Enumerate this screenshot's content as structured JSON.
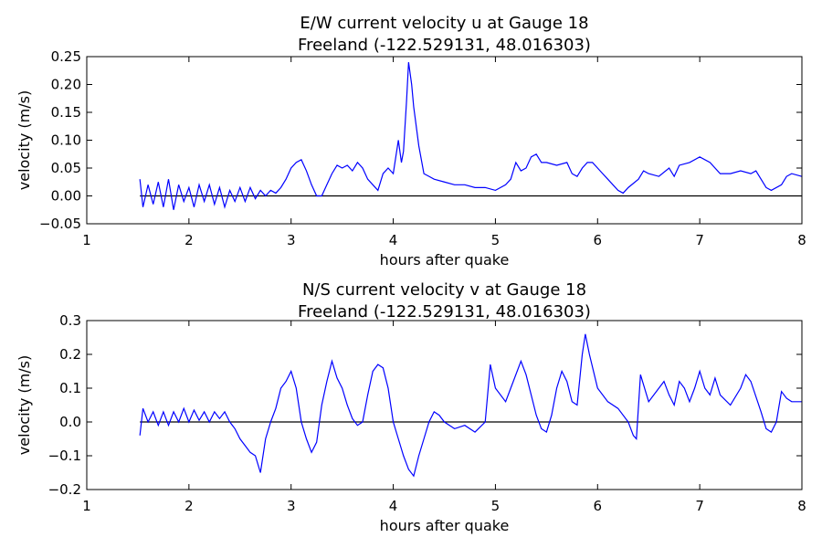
{
  "chart_data": [
    {
      "type": "line",
      "title": "E/W current velocity u at Gauge 18",
      "subtitle": "Freeland  (-122.529131, 48.016303)",
      "x_label": "hours after quake",
      "y_label": "velocity (m/s)",
      "xlim": [
        1,
        8
      ],
      "xticks": [
        1,
        2,
        3,
        4,
        5,
        6,
        7,
        8
      ],
      "ylim": [
        -0.05,
        0.25
      ],
      "yticks": [
        {
          "value": -0.05,
          "label": "−0.05"
        },
        {
          "value": 0,
          "label": "0.00"
        },
        {
          "value": 0.05,
          "label": "0.05"
        },
        {
          "value": 0.1,
          "label": "0.10"
        },
        {
          "value": 0.15,
          "label": "0.15"
        },
        {
          "value": 0.2,
          "label": "0.20"
        },
        {
          "value": 0.25,
          "label": "0.25"
        }
      ],
      "hline": 0,
      "x": [
        1.52,
        1.55,
        1.6,
        1.65,
        1.7,
        1.75,
        1.8,
        1.85,
        1.9,
        1.95,
        2.0,
        2.05,
        2.1,
        2.15,
        2.2,
        2.25,
        2.3,
        2.35,
        2.4,
        2.45,
        2.5,
        2.55,
        2.6,
        2.65,
        2.7,
        2.75,
        2.8,
        2.85,
        2.9,
        2.95,
        3.0,
        3.05,
        3.1,
        3.15,
        3.2,
        3.25,
        3.3,
        3.35,
        3.4,
        3.45,
        3.5,
        3.55,
        3.6,
        3.65,
        3.7,
        3.75,
        3.8,
        3.85,
        3.9,
        3.95,
        4.0,
        4.05,
        4.08,
        4.1,
        4.13,
        4.15,
        4.18,
        4.2,
        4.25,
        4.3,
        4.35,
        4.4,
        4.5,
        4.6,
        4.7,
        4.8,
        4.9,
        5.0,
        5.1,
        5.15,
        5.2,
        5.25,
        5.3,
        5.35,
        5.4,
        5.45,
        5.5,
        5.6,
        5.7,
        5.75,
        5.8,
        5.85,
        5.9,
        5.95,
        6.0,
        6.05,
        6.1,
        6.2,
        6.25,
        6.3,
        6.4,
        6.45,
        6.5,
        6.6,
        6.7,
        6.75,
        6.8,
        6.9,
        7.0,
        7.1,
        7.2,
        7.3,
        7.4,
        7.5,
        7.55,
        7.6,
        7.65,
        7.7,
        7.8,
        7.85,
        7.9,
        8.0
      ],
      "series": [
        {
          "name": "u",
          "color": "#0000ff",
          "values": [
            0.03,
            -0.02,
            0.02,
            -0.015,
            0.025,
            -0.02,
            0.03,
            -0.025,
            0.02,
            -0.01,
            0.015,
            -0.02,
            0.02,
            -0.01,
            0.02,
            -0.015,
            0.015,
            -0.02,
            0.01,
            -0.01,
            0.015,
            -0.01,
            0.015,
            -0.005,
            0.01,
            0.0,
            0.01,
            0.005,
            0.015,
            0.03,
            0.05,
            0.06,
            0.065,
            0.045,
            0.02,
            0.0,
            0.0,
            0.02,
            0.04,
            0.055,
            0.05,
            0.055,
            0.045,
            0.06,
            0.05,
            0.03,
            0.02,
            0.01,
            0.04,
            0.05,
            0.04,
            0.1,
            0.06,
            0.08,
            0.17,
            0.24,
            0.2,
            0.16,
            0.09,
            0.04,
            0.035,
            0.03,
            0.025,
            0.02,
            0.02,
            0.015,
            0.015,
            0.01,
            0.02,
            0.03,
            0.06,
            0.045,
            0.05,
            0.07,
            0.075,
            0.06,
            0.06,
            0.055,
            0.06,
            0.04,
            0.035,
            0.05,
            0.06,
            0.06,
            0.05,
            0.04,
            0.03,
            0.01,
            0.005,
            0.015,
            0.03,
            0.045,
            0.04,
            0.035,
            0.05,
            0.035,
            0.055,
            0.06,
            0.07,
            0.06,
            0.04,
            0.04,
            0.045,
            0.04,
            0.045,
            0.03,
            0.015,
            0.01,
            0.02,
            0.035,
            0.04,
            0.035
          ]
        }
      ]
    },
    {
      "type": "line",
      "title": "N/S current velocity v at Gauge 18",
      "subtitle": "Freeland  (-122.529131, 48.016303)",
      "x_label": "hours after quake",
      "y_label": "velocity (m/s)",
      "xlim": [
        1,
        8
      ],
      "xticks": [
        1,
        2,
        3,
        4,
        5,
        6,
        7,
        8
      ],
      "ylim": [
        -0.2,
        0.3
      ],
      "yticks": [
        {
          "value": -0.2,
          "label": "−0.2"
        },
        {
          "value": -0.1,
          "label": "−0.1"
        },
        {
          "value": 0,
          "label": "0.0"
        },
        {
          "value": 0.1,
          "label": "0.1"
        },
        {
          "value": 0.2,
          "label": "0.2"
        },
        {
          "value": 0.3,
          "label": "0.3"
        }
      ],
      "hline": 0,
      "x": [
        1.52,
        1.55,
        1.6,
        1.65,
        1.7,
        1.75,
        1.8,
        1.85,
        1.9,
        1.95,
        2.0,
        2.05,
        2.1,
        2.15,
        2.2,
        2.25,
        2.3,
        2.35,
        2.4,
        2.45,
        2.5,
        2.55,
        2.6,
        2.65,
        2.7,
        2.75,
        2.8,
        2.85,
        2.9,
        2.95,
        3.0,
        3.05,
        3.1,
        3.15,
        3.2,
        3.25,
        3.3,
        3.35,
        3.4,
        3.45,
        3.5,
        3.55,
        3.6,
        3.65,
        3.7,
        3.75,
        3.8,
        3.85,
        3.9,
        3.95,
        4.0,
        4.05,
        4.1,
        4.15,
        4.2,
        4.25,
        4.3,
        4.35,
        4.4,
        4.45,
        4.5,
        4.6,
        4.7,
        4.8,
        4.9,
        4.95,
        5.0,
        5.1,
        5.15,
        5.25,
        5.3,
        5.35,
        5.4,
        5.45,
        5.5,
        5.55,
        5.6,
        5.65,
        5.7,
        5.75,
        5.8,
        5.85,
        5.88,
        5.92,
        6.0,
        6.1,
        6.2,
        6.3,
        6.35,
        6.38,
        6.42,
        6.5,
        6.6,
        6.65,
        6.7,
        6.75,
        6.8,
        6.85,
        6.9,
        6.95,
        7.0,
        7.05,
        7.1,
        7.15,
        7.2,
        7.3,
        7.4,
        7.45,
        7.5,
        7.6,
        7.65,
        7.7,
        7.75,
        7.8,
        7.85,
        7.9,
        8.0
      ],
      "series": [
        {
          "name": "v",
          "color": "#0000ff",
          "values": [
            -0.04,
            0.04,
            0.0,
            0.03,
            -0.01,
            0.03,
            -0.01,
            0.03,
            0.0,
            0.04,
            0.0,
            0.035,
            0.005,
            0.03,
            0.0,
            0.03,
            0.01,
            0.03,
            0.0,
            -0.02,
            -0.05,
            -0.07,
            -0.09,
            -0.1,
            -0.15,
            -0.05,
            0.0,
            0.04,
            0.1,
            0.12,
            0.15,
            0.1,
            0.0,
            -0.05,
            -0.09,
            -0.06,
            0.05,
            0.12,
            0.18,
            0.13,
            0.1,
            0.05,
            0.01,
            -0.01,
            0.0,
            0.08,
            0.15,
            0.17,
            0.16,
            0.1,
            0.0,
            -0.05,
            -0.1,
            -0.14,
            -0.16,
            -0.1,
            -0.05,
            0.0,
            0.03,
            0.02,
            0.0,
            -0.02,
            -0.01,
            -0.03,
            0.0,
            0.17,
            0.1,
            0.06,
            0.1,
            0.18,
            0.14,
            0.08,
            0.02,
            -0.02,
            -0.03,
            0.02,
            0.1,
            0.15,
            0.12,
            0.06,
            0.05,
            0.2,
            0.26,
            0.2,
            0.1,
            0.06,
            0.04,
            0.0,
            -0.04,
            -0.05,
            0.14,
            0.06,
            0.1,
            0.12,
            0.08,
            0.05,
            0.12,
            0.1,
            0.06,
            0.1,
            0.15,
            0.1,
            0.08,
            0.13,
            0.08,
            0.05,
            0.1,
            0.14,
            0.12,
            0.03,
            -0.02,
            -0.03,
            0.0,
            0.09,
            0.07,
            0.06,
            0.06
          ]
        }
      ]
    }
  ]
}
